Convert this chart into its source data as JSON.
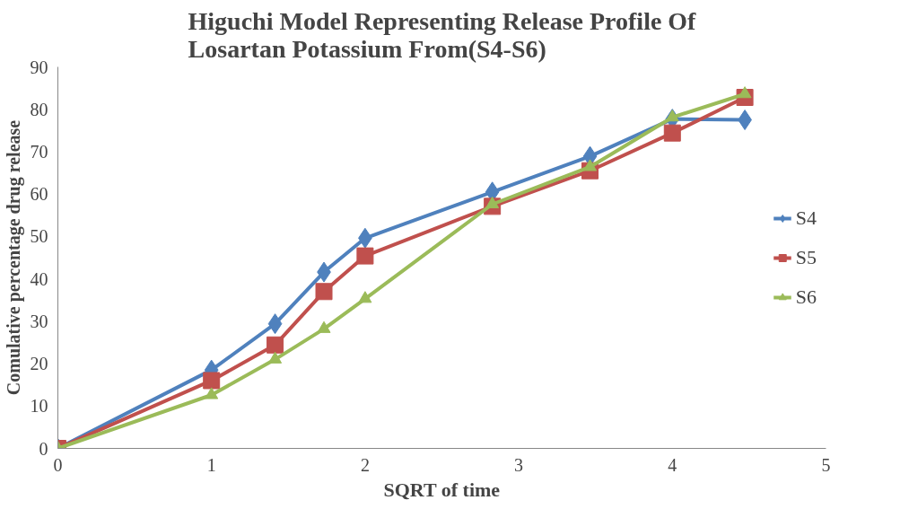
{
  "chart_data": {
    "type": "line",
    "title": "Higuchi Model Representing Release Profile Of Losartan Potassium From(S4-S6)",
    "xlabel": "SQRT of time",
    "ylabel": "Comulative percentage drug release",
    "x": [
      0,
      1,
      1.414,
      1.732,
      2,
      2.828,
      3.464,
      4,
      4.472
    ],
    "series": [
      {
        "name": "S4",
        "color": "#4f81bd",
        "marker": "diamond",
        "values": [
          0,
          18.5,
          29.4,
          41.6,
          49.6,
          60.5,
          68.9,
          77.7,
          77.5
        ]
      },
      {
        "name": "S5",
        "color": "#c0504d",
        "marker": "square",
        "values": [
          0,
          16,
          24.4,
          37,
          45.4,
          57.1,
          65.5,
          74.4,
          82.8
        ]
      },
      {
        "name": "S6",
        "color": "#9bbb59",
        "marker": "triangle",
        "values": [
          0,
          12.6,
          21,
          28.2,
          35.3,
          57.6,
          66.4,
          78.1,
          83.6
        ]
      }
    ],
    "xlim": [
      0,
      5
    ],
    "xticks": [
      0,
      1,
      2,
      3,
      4,
      5
    ],
    "ylim": [
      0,
      90
    ],
    "yticks": [
      0,
      10,
      20,
      30,
      40,
      50,
      60,
      70,
      80,
      90
    ],
    "grid": false,
    "legend": "right",
    "line_style": "solid"
  }
}
